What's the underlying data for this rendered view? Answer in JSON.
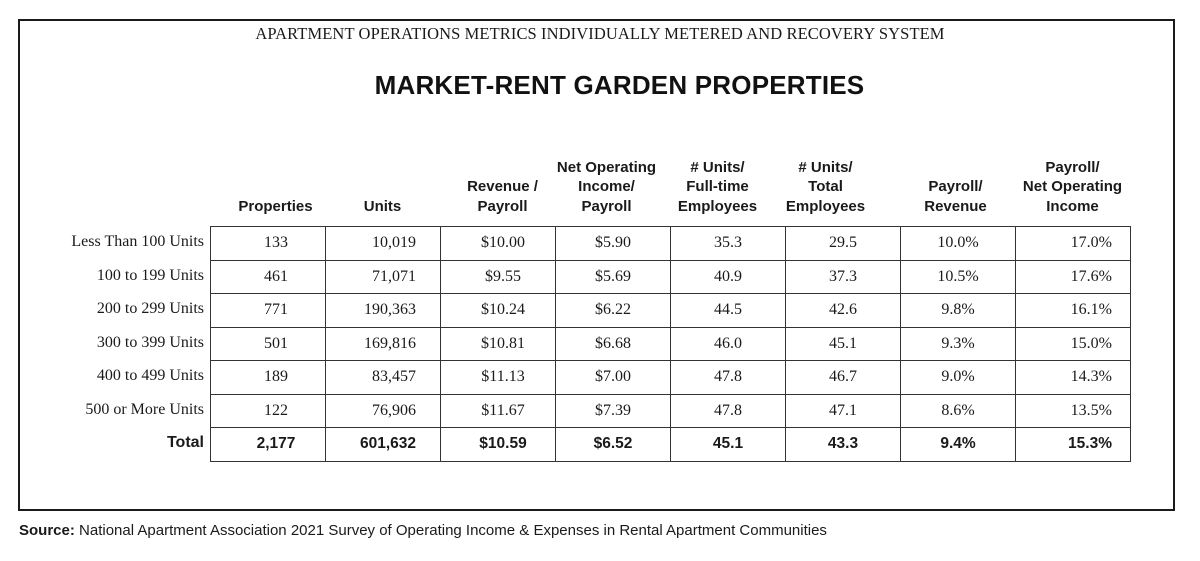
{
  "subtitle": "APARTMENT OPERATIONS METRICS INDIVIDUALLY METERED AND RECOVERY SYSTEM",
  "title": "MARKET-RENT GARDEN PROPERTIES",
  "columns": [
    {
      "lines": [
        "Properties"
      ]
    },
    {
      "lines": [
        "Units"
      ]
    },
    {
      "lines": [
        "Revenue /",
        "Payroll"
      ]
    },
    {
      "lines": [
        "Net Operating",
        "Income/",
        "Payroll"
      ]
    },
    {
      "lines": [
        "# Units/",
        "Full-time",
        "Employees"
      ]
    },
    {
      "lines": [
        "# Units/",
        "Total",
        "Employees"
      ]
    },
    {
      "lines": [
        "Payroll/",
        "Revenue"
      ]
    },
    {
      "lines": [
        "Payroll/",
        "Net Operating",
        "Income"
      ]
    }
  ],
  "rows": [
    {
      "label": "Less Than 100 Units",
      "cells": [
        "133",
        "10,019",
        "$10.00",
        "$5.90",
        "35.3",
        "29.5",
        "10.0%",
        "17.0%"
      ]
    },
    {
      "label": "100 to 199 Units",
      "cells": [
        "461",
        "71,071",
        "$9.55",
        "$5.69",
        "40.9",
        "37.3",
        "10.5%",
        "17.6%"
      ]
    },
    {
      "label": "200 to 299 Units",
      "cells": [
        "771",
        "190,363",
        "$10.24",
        "$6.22",
        "44.5",
        "42.6",
        "9.8%",
        "16.1%"
      ]
    },
    {
      "label": "300 to 399 Units",
      "cells": [
        "501",
        "169,816",
        "$10.81",
        "$6.68",
        "46.0",
        "45.1",
        "9.3%",
        "15.0%"
      ]
    },
    {
      "label": "400 to 499 Units",
      "cells": [
        "189",
        "83,457",
        "$11.13",
        "$7.00",
        "47.8",
        "46.7",
        "9.0%",
        "14.3%"
      ]
    },
    {
      "label": "500 or More Units",
      "cells": [
        "122",
        "76,906",
        "$11.67",
        "$7.39",
        "47.8",
        "47.1",
        "8.6%",
        "13.5%"
      ]
    }
  ],
  "total": {
    "label": "Total",
    "cells": [
      "2,177",
      "601,632",
      "$10.59",
      "$6.52",
      "45.1",
      "43.3",
      "9.4%",
      "15.3%"
    ]
  },
  "source": {
    "label": "Source:",
    "text": " National Apartment Association 2021 Survey of Operating Income & Expenses in Rental Apartment Communities"
  }
}
